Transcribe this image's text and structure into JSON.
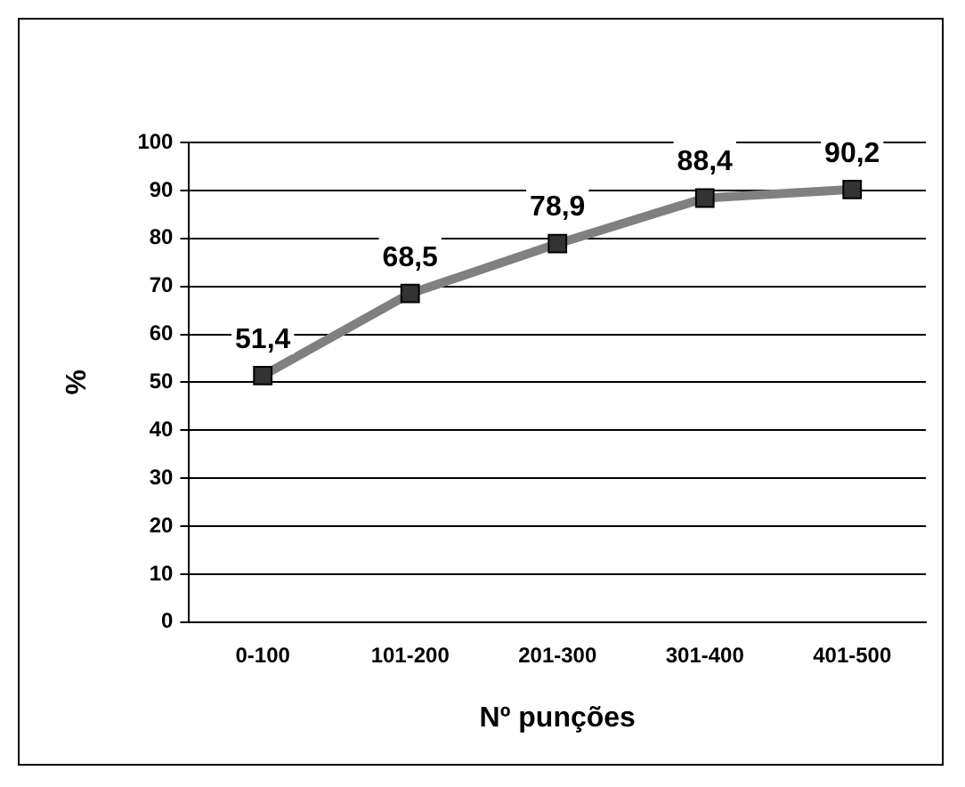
{
  "chart_data": {
    "type": "line",
    "xlabel": "Nº punções",
    "ylabel": "%",
    "categories": [
      "0-100",
      "101-200",
      "201-300",
      "301-400",
      "401-500"
    ],
    "series": [
      {
        "color": "#808080",
        "values": [
          51.4,
          68.5,
          78.9,
          88.4,
          90.2
        ],
        "value_labels": [
          "51,4",
          "68,5",
          "78,9",
          "88,4",
          "90,2"
        ]
      }
    ],
    "ylim": [
      0,
      100
    ],
    "yticks": [
      0,
      10,
      20,
      30,
      40,
      50,
      60,
      70,
      80,
      90,
      100
    ],
    "grid": "y",
    "legend": false,
    "marker": "square",
    "line_style": "solid"
  }
}
